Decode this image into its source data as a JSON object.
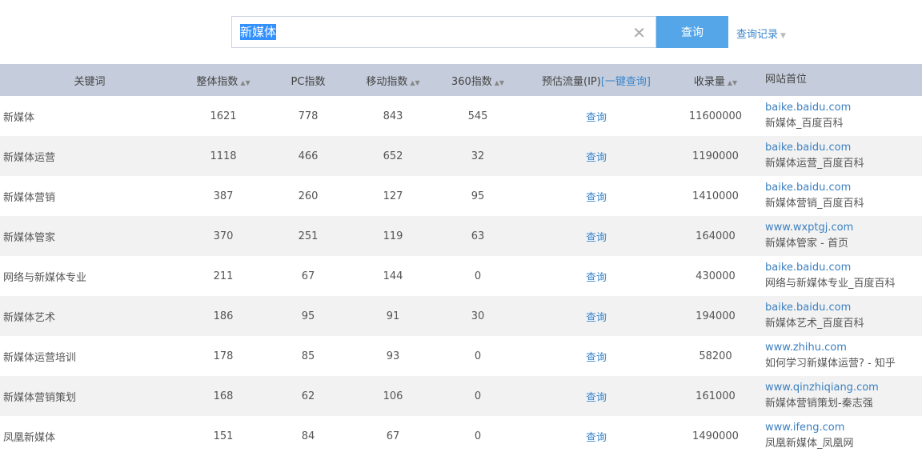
{
  "search": {
    "value": "新媒体",
    "clear_icon": "close-icon",
    "button": "查询",
    "history": "查询记录"
  },
  "columns": {
    "keyword": "关键词",
    "overall": "整体指数",
    "pc": "PC指数",
    "mobile": "移动指数",
    "s360": "360指数",
    "traffic": "预估流量(IP)",
    "traffic_link": "[一键查询]",
    "indexed": "收录量",
    "site": "网站首位"
  },
  "rows": [
    {
      "keyword": "新媒体",
      "overall": "1621",
      "pc": "778",
      "mobile": "843",
      "s360": "545",
      "traffic": "查询",
      "indexed": "11600000",
      "domain": "baike.baidu.com",
      "title": "新媒体_百度百科"
    },
    {
      "keyword": "新媒体运营",
      "overall": "1118",
      "pc": "466",
      "mobile": "652",
      "s360": "32",
      "traffic": "查询",
      "indexed": "1190000",
      "domain": "baike.baidu.com",
      "title": "新媒体运营_百度百科"
    },
    {
      "keyword": "新媒体营销",
      "overall": "387",
      "pc": "260",
      "mobile": "127",
      "s360": "95",
      "traffic": "查询",
      "indexed": "1410000",
      "domain": "baike.baidu.com",
      "title": "新媒体营销_百度百科"
    },
    {
      "keyword": "新媒体管家",
      "overall": "370",
      "pc": "251",
      "mobile": "119",
      "s360": "63",
      "traffic": "查询",
      "indexed": "164000",
      "domain": "www.wxptgj.com",
      "title": "新媒体管家 - 首页"
    },
    {
      "keyword": "网络与新媒体专业",
      "overall": "211",
      "pc": "67",
      "mobile": "144",
      "s360": "0",
      "traffic": "查询",
      "indexed": "430000",
      "domain": "baike.baidu.com",
      "title": "网络与新媒体专业_百度百科"
    },
    {
      "keyword": "新媒体艺术",
      "overall": "186",
      "pc": "95",
      "mobile": "91",
      "s360": "30",
      "traffic": "查询",
      "indexed": "194000",
      "domain": "baike.baidu.com",
      "title": "新媒体艺术_百度百科"
    },
    {
      "keyword": "新媒体运营培训",
      "overall": "178",
      "pc": "85",
      "mobile": "93",
      "s360": "0",
      "traffic": "查询",
      "indexed": "58200",
      "domain": "www.zhihu.com",
      "title": "如何学习新媒体运营? - 知乎"
    },
    {
      "keyword": "新媒体营销策划",
      "overall": "168",
      "pc": "62",
      "mobile": "106",
      "s360": "0",
      "traffic": "查询",
      "indexed": "161000",
      "domain": "www.qinzhiqiang.com",
      "title": "新媒体营销策划-秦志强"
    },
    {
      "keyword": "凤凰新媒体",
      "overall": "151",
      "pc": "84",
      "mobile": "67",
      "s360": "0",
      "traffic": "查询",
      "indexed": "1490000",
      "domain": "www.ifeng.com",
      "title": "凤凰新媒体_凤凰网"
    }
  ]
}
